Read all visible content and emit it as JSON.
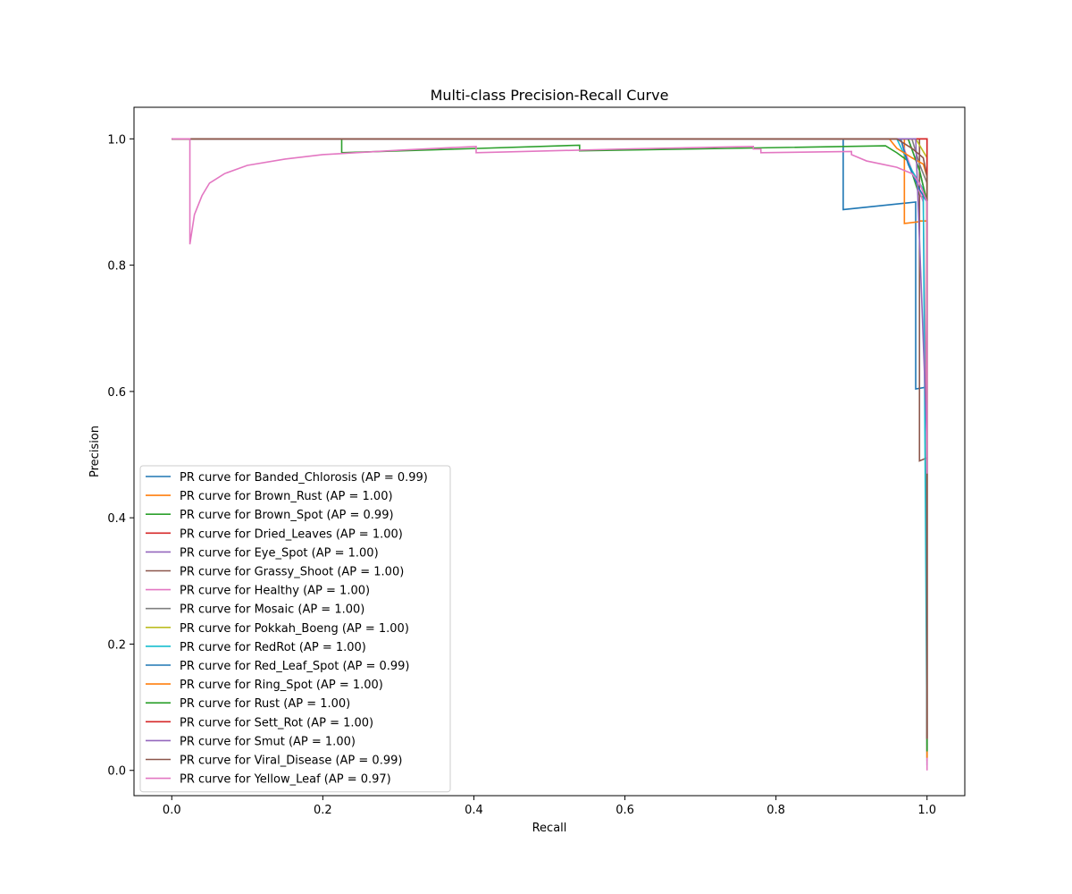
{
  "chart_data": {
    "type": "line",
    "title": "Multi-class Precision-Recall Curve",
    "xlabel": "Recall",
    "ylabel": "Precision",
    "xlim": [
      -0.05,
      1.05
    ],
    "ylim": [
      -0.04,
      1.05
    ],
    "xticks": [
      0.0,
      0.2,
      0.4,
      0.6,
      0.8,
      1.0
    ],
    "yticks": [
      0.0,
      0.2,
      0.4,
      0.6,
      0.8,
      1.0
    ],
    "xtick_labels": [
      "0.0",
      "0.2",
      "0.4",
      "0.6",
      "0.8",
      "1.0"
    ],
    "ytick_labels": [
      "0.0",
      "0.2",
      "0.4",
      "0.6",
      "0.8",
      "1.0"
    ],
    "grid": false,
    "legend_position": "lower-left",
    "series": [
      {
        "name": "PR curve for Banded_Chlorosis (AP = 0.99)",
        "color": "#1f77b4",
        "x": [
          0.0,
          0.889,
          0.889,
          0.985,
          0.985,
          1.0,
          1.0
        ],
        "y": [
          1.0,
          1.0,
          0.888,
          0.9,
          0.604,
          0.607,
          0.008
        ]
      },
      {
        "name": "PR curve for Brown_Rust (AP = 1.00)",
        "color": "#ff7f0e",
        "x": [
          0.0,
          0.97,
          0.97,
          0.99,
          0.99,
          1.0,
          1.0
        ],
        "y": [
          1.0,
          1.0,
          0.866,
          0.869,
          0.87,
          0.87,
          0.015
        ]
      },
      {
        "name": "PR curve for Brown_Spot (AP = 0.99)",
        "color": "#2ca02c",
        "x": [
          0.0,
          0.225,
          0.225,
          0.54,
          0.54,
          0.945,
          0.96,
          0.975,
          0.99,
          1.0,
          1.0
        ],
        "y": [
          1.0,
          1.0,
          0.978,
          0.99,
          0.981,
          0.989,
          0.978,
          0.965,
          0.91,
          0.905,
          0.02
        ]
      },
      {
        "name": "PR curve for Dried_Leaves (AP = 1.00)",
        "color": "#d62728",
        "x": [
          0.0,
          1.0,
          1.0
        ],
        "y": [
          1.0,
          1.0,
          0.05
        ]
      },
      {
        "name": "PR curve for Eye_Spot (AP = 1.00)",
        "color": "#9467bd",
        "x": [
          0.0,
          0.975,
          0.99,
          1.0,
          1.0
        ],
        "y": [
          1.0,
          1.0,
          0.95,
          0.9,
          0.03
        ]
      },
      {
        "name": "PR curve for Grassy_Shoot (AP = 1.00)",
        "color": "#8c564b",
        "x": [
          0.0,
          0.99,
          0.99,
          1.0,
          1.0
        ],
        "y": [
          1.0,
          1.0,
          0.49,
          0.495,
          0.16
        ]
      },
      {
        "name": "PR curve for Healthy (AP = 1.00)",
        "color": "#e377c2",
        "x": [
          0.0,
          0.965,
          0.98,
          0.995,
          1.0,
          1.0
        ],
        "y": [
          1.0,
          1.0,
          0.95,
          0.9,
          0.47,
          0.0
        ]
      },
      {
        "name": "PR curve for Mosaic (AP = 1.00)",
        "color": "#7f7f7f",
        "x": [
          0.0,
          0.98,
          0.99,
          1.0,
          1.0
        ],
        "y": [
          1.0,
          1.0,
          0.96,
          0.93,
          0.05
        ]
      },
      {
        "name": "PR curve for Pokkah_Boeng (AP = 1.00)",
        "color": "#bcbd22",
        "x": [
          0.0,
          0.985,
          1.0,
          1.0
        ],
        "y": [
          1.0,
          1.0,
          0.97,
          0.05
        ]
      },
      {
        "name": "PR curve for RedRot (AP = 1.00)",
        "color": "#17becf",
        "x": [
          0.0,
          0.96,
          0.98,
          0.995,
          1.0
        ],
        "y": [
          1.0,
          1.0,
          0.95,
          0.92,
          0.04
        ]
      },
      {
        "name": "PR curve for Red_Leaf_Spot (AP = 0.99)",
        "color": "#1f77b4",
        "x": [
          0.0,
          0.965,
          0.975,
          0.99,
          1.0,
          1.0
        ],
        "y": [
          1.0,
          1.0,
          0.96,
          0.92,
          0.9,
          0.03
        ]
      },
      {
        "name": "PR curve for Ring_Spot (AP = 1.00)",
        "color": "#ff7f0e",
        "x": [
          0.0,
          0.95,
          0.96,
          0.98,
          0.995,
          1.0,
          1.0
        ],
        "y": [
          1.0,
          1.0,
          0.985,
          0.97,
          0.96,
          0.94,
          0.02
        ]
      },
      {
        "name": "PR curve for Rust (AP = 1.00)",
        "color": "#2ca02c",
        "x": [
          0.0,
          0.975,
          0.99,
          1.0,
          1.0
        ],
        "y": [
          1.0,
          1.0,
          0.95,
          0.9,
          0.03
        ]
      },
      {
        "name": "PR curve for Sett_Rot (AP = 1.00)",
        "color": "#d62728",
        "x": [
          0.0,
          1.0,
          1.0
        ],
        "y": [
          1.0,
          1.0,
          0.05
        ]
      },
      {
        "name": "PR curve for Smut (AP = 1.00)",
        "color": "#9467bd",
        "x": [
          0.0,
          0.985,
          1.0,
          1.0
        ],
        "y": [
          1.0,
          1.0,
          0.52,
          0.05
        ]
      },
      {
        "name": "PR curve for Viral_Disease (AP = 0.99)",
        "color": "#8c564b",
        "x": [
          0.0,
          0.96,
          0.98,
          0.995,
          1.0,
          1.0
        ],
        "y": [
          1.0,
          1.0,
          0.985,
          0.97,
          0.94,
          0.05
        ]
      },
      {
        "name": "PR curve for Yellow_Leaf (AP = 0.97)",
        "color": "#e377c2",
        "x": [
          0.0,
          0.024,
          0.024,
          0.03,
          0.04,
          0.05,
          0.07,
          0.1,
          0.15,
          0.2,
          0.3,
          0.403,
          0.403,
          0.6,
          0.77,
          0.77,
          0.78,
          0.78,
          0.9,
          0.9,
          0.92,
          0.94,
          0.96,
          0.98,
          0.99,
          1.0,
          1.0
        ],
        "y": [
          1.0,
          1.0,
          0.833,
          0.88,
          0.91,
          0.93,
          0.945,
          0.958,
          0.968,
          0.975,
          0.982,
          0.988,
          0.978,
          0.984,
          0.988,
          0.984,
          0.984,
          0.978,
          0.98,
          0.975,
          0.965,
          0.96,
          0.955,
          0.945,
          0.93,
          0.9,
          0.47
        ]
      }
    ]
  }
}
